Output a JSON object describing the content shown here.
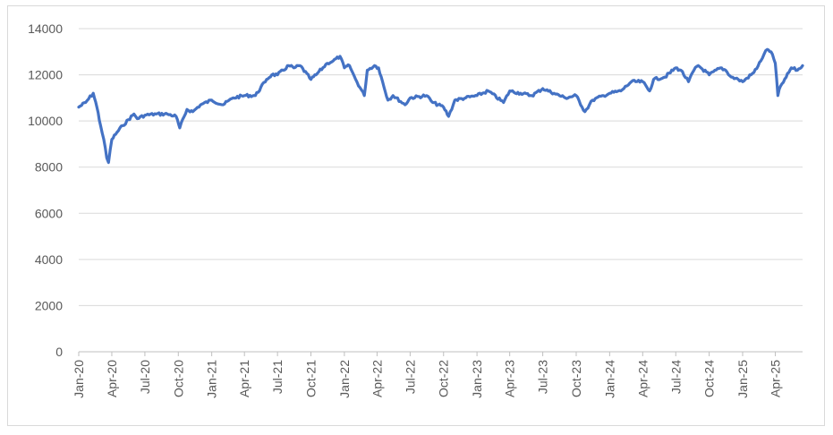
{
  "chart_data": {
    "type": "line",
    "title": "",
    "xlabel": "",
    "ylabel": "",
    "ylim": [
      0,
      14000
    ],
    "yticks": [
      0,
      2000,
      4000,
      6000,
      8000,
      10000,
      12000,
      14000
    ],
    "xlim": [
      "2020-01-01",
      "2025-06-15"
    ],
    "xticks": [
      "2020-01-01",
      "2020-04-01",
      "2020-07-01",
      "2020-10-01",
      "2021-01-01",
      "2021-04-01",
      "2021-07-01",
      "2021-10-01",
      "2022-01-01",
      "2022-04-01",
      "2022-07-01",
      "2022-10-01",
      "2023-01-01",
      "2023-04-01",
      "2023-07-01",
      "2023-10-01",
      "2024-01-01",
      "2024-04-01",
      "2024-07-01",
      "2024-10-01",
      "2025-01-01",
      "2025-04-01"
    ],
    "xtick_labels": [
      "Jan-20",
      "Apr-20",
      "Jul-20",
      "Oct-20",
      "Jan-21",
      "Apr-21",
      "Jul-21",
      "Oct-21",
      "Jan-22",
      "Apr-22",
      "Jul-22",
      "Oct-22",
      "Jan-23",
      "Apr-23",
      "Jul-23",
      "Oct-23",
      "Jan-24",
      "Apr-24",
      "Jul-24",
      "Oct-24",
      "Jan-25",
      "Apr-25"
    ],
    "grid": true,
    "legend": "none",
    "series_color": "#4472c4",
    "series": [
      {
        "x": [
          "2020-01-01",
          "2020-01-20",
          "2020-02-10",
          "2020-02-20",
          "2020-03-01",
          "2020-03-10",
          "2020-03-18",
          "2020-03-23",
          "2020-04-01",
          "2020-04-15",
          "2020-05-01",
          "2020-06-01",
          "2020-06-10",
          "2020-07-01",
          "2020-08-01",
          "2020-09-01",
          "2020-09-25",
          "2020-10-05",
          "2020-10-25",
          "2020-11-10",
          "2020-12-01",
          "2021-01-01",
          "2021-02-01",
          "2021-03-01",
          "2021-04-01",
          "2021-05-01",
          "2021-06-01",
          "2021-06-15",
          "2021-07-01",
          "2021-08-01",
          "2021-08-15",
          "2021-09-01",
          "2021-10-01",
          "2021-10-15",
          "2021-11-15",
          "2021-12-01",
          "2021-12-20",
          "2022-01-01",
          "2022-01-15",
          "2022-02-01",
          "2022-02-25",
          "2022-03-05",
          "2022-03-25",
          "2022-04-05",
          "2022-05-01",
          "2022-05-15",
          "2022-06-17",
          "2022-07-01",
          "2022-08-15",
          "2022-09-01",
          "2022-10-01",
          "2022-10-15",
          "2022-11-01",
          "2022-12-01",
          "2023-01-01",
          "2023-02-01",
          "2023-03-15",
          "2023-04-01",
          "2023-05-01",
          "2023-06-01",
          "2023-07-01",
          "2023-08-01",
          "2023-09-01",
          "2023-10-01",
          "2023-10-25",
          "2023-11-15",
          "2023-12-15",
          "2024-01-01",
          "2024-02-01",
          "2024-03-01",
          "2024-04-01",
          "2024-04-20",
          "2024-05-01",
          "2024-06-01",
          "2024-07-01",
          "2024-07-15",
          "2024-08-05",
          "2024-08-20",
          "2024-09-01",
          "2024-10-01",
          "2024-11-01",
          "2024-11-15",
          "2024-12-01",
          "2024-12-20",
          "2025-01-01",
          "2025-02-01",
          "2025-02-20",
          "2025-03-01",
          "2025-03-10",
          "2025-03-20",
          "2025-04-01",
          "2025-04-08",
          "2025-04-15",
          "2025-05-01",
          "2025-05-15",
          "2025-06-01",
          "2025-06-15"
        ],
        "y": [
          10600,
          10800,
          11200,
          10600,
          9800,
          9200,
          8400,
          8200,
          9200,
          9500,
          9800,
          10300,
          10100,
          10250,
          10300,
          10300,
          10200,
          9700,
          10500,
          10400,
          10700,
          10900,
          10700,
          11000,
          11100,
          11100,
          11800,
          12000,
          12000,
          12400,
          12300,
          12400,
          11800,
          12000,
          12500,
          12600,
          12800,
          12300,
          12400,
          11800,
          11100,
          12200,
          12400,
          12300,
          10900,
          11100,
          10700,
          11000,
          11100,
          10800,
          10600,
          10200,
          10900,
          11000,
          11100,
          11300,
          10800,
          11300,
          11200,
          11100,
          11400,
          11200,
          11000,
          11100,
          10400,
          10900,
          11100,
          11200,
          11300,
          11700,
          11700,
          11300,
          11800,
          11900,
          12300,
          12200,
          11700,
          12200,
          12400,
          12000,
          12300,
          12200,
          11900,
          11800,
          11700,
          12100,
          12600,
          12900,
          13100,
          13000,
          12500,
          11100,
          11500,
          11900,
          12300,
          12200,
          12400
        ]
      }
    ]
  }
}
